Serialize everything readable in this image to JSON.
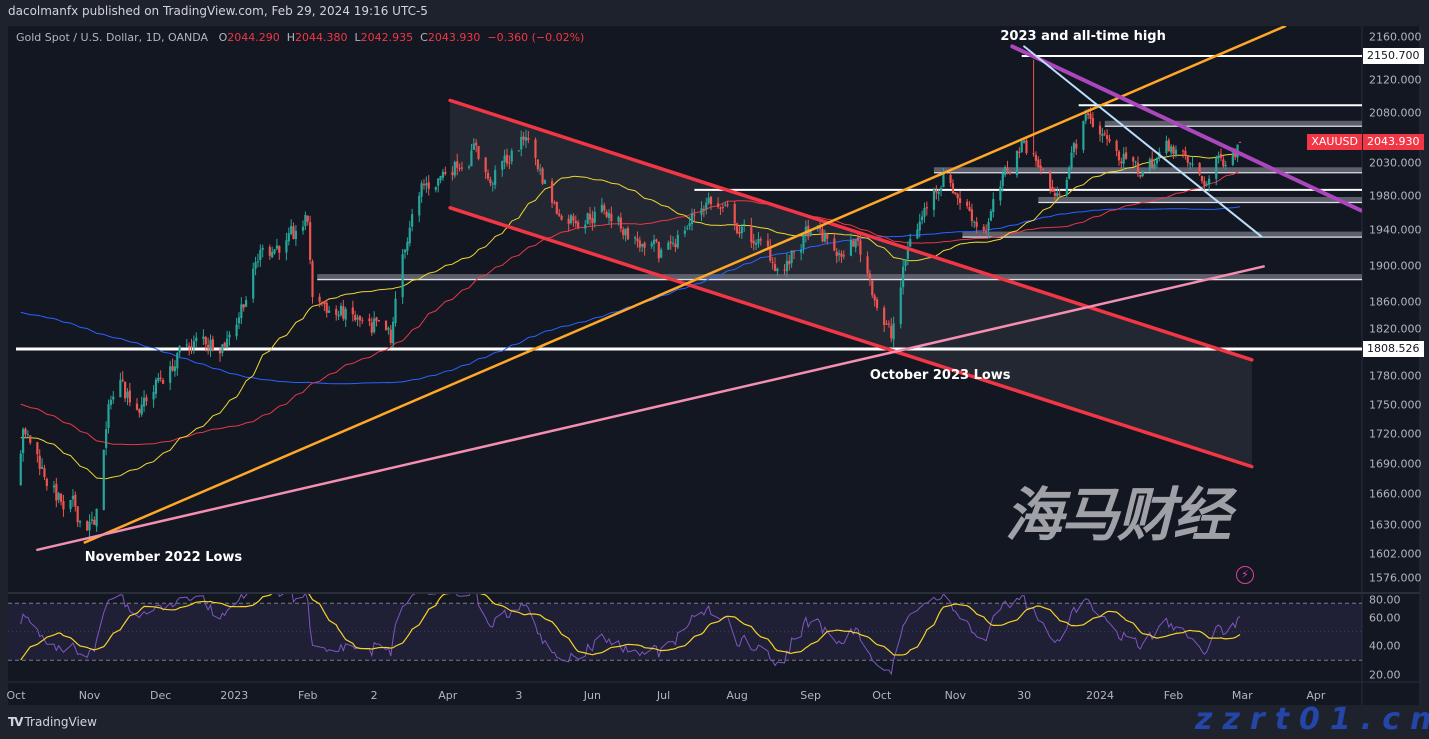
{
  "header": {
    "publisher": "dacolmanfx published on TradingView.com, Feb 29, 2024 19:16 UTC-5"
  },
  "legend": {
    "symbol": "Gold Spot / U.S. Dollar, 1D, OANDA",
    "o_label": "O",
    "o": "2044.290",
    "h_label": "H",
    "h": "2044.380",
    "l_label": "L",
    "l": "2042.935",
    "c_label": "C",
    "c": "2043.930",
    "change": "−0.360 (−0.02%)"
  },
  "footer": {
    "brand": "TradingView",
    "brand_icon": "tradingview-logo-icon"
  },
  "watermark": {
    "cn": "海马财经",
    "url": "zzrt01.cn"
  },
  "colors": {
    "background": "#131722",
    "up": "#26a69a",
    "down": "#ef5350",
    "sma_fast": "#f0d632",
    "sma_mid": "#e53945",
    "sma_slow": "#2962ff",
    "channel": "#f23645",
    "orange_trend": "#ffa726",
    "pink_trend": "#f48fb1",
    "purple_trend": "#ab47bc",
    "lightblue_trend": "#bbdefb",
    "rsi": "#7e57c2",
    "rsi_signal": "#f5d327",
    "price_label": "#f23645"
  },
  "chart_data": {
    "type": "candlestick",
    "symbol": "XAUUSD",
    "timeframe": "1D",
    "y_scale": "log",
    "current_price_label": {
      "name": "XAUUSD",
      "value": "2043.930"
    },
    "last_bar": {
      "open": 2044.29,
      "high": 2044.38,
      "low": 2042.935,
      "close": 2043.93
    },
    "close_waypoints": [
      {
        "date": "2022-10-03",
        "close": 1700
      },
      {
        "date": "2022-10-04",
        "close": 1725
      },
      {
        "date": "2022-10-21",
        "close": 1645
      },
      {
        "date": "2022-11-03",
        "close": 1630
      },
      {
        "date": "2022-11-10",
        "close": 1755
      },
      {
        "date": "2022-11-15",
        "close": 1775
      },
      {
        "date": "2022-11-23",
        "close": 1750
      },
      {
        "date": "2022-12-05",
        "close": 1790
      },
      {
        "date": "2022-12-13",
        "close": 1810
      },
      {
        "date": "2022-12-30",
        "close": 1824
      },
      {
        "date": "2023-01-13",
        "close": 1920
      },
      {
        "date": "2023-01-26",
        "close": 1930
      },
      {
        "date": "2023-02-01",
        "close": 1950
      },
      {
        "date": "2023-02-03",
        "close": 1865
      },
      {
        "date": "2023-02-28",
        "close": 1826
      },
      {
        "date": "2023-03-08",
        "close": 1815
      },
      {
        "date": "2023-03-13",
        "close": 1913
      },
      {
        "date": "2023-03-20",
        "close": 1980
      },
      {
        "date": "2023-04-04",
        "close": 2020
      },
      {
        "date": "2023-04-13",
        "close": 2040
      },
      {
        "date": "2023-04-19",
        "close": 1995
      },
      {
        "date": "2023-05-04",
        "close": 2050
      },
      {
        "date": "2023-05-18",
        "close": 1957
      },
      {
        "date": "2023-05-30",
        "close": 1960
      },
      {
        "date": "2023-06-06",
        "close": 1963
      },
      {
        "date": "2023-06-23",
        "close": 1920
      },
      {
        "date": "2023-06-29",
        "close": 1908
      },
      {
        "date": "2023-07-20",
        "close": 1978
      },
      {
        "date": "2023-08-08",
        "close": 1925
      },
      {
        "date": "2023-08-21",
        "close": 1895
      },
      {
        "date": "2023-09-01",
        "close": 1940
      },
      {
        "date": "2023-09-14",
        "close": 1910
      },
      {
        "date": "2023-09-20",
        "close": 1930
      },
      {
        "date": "2023-10-05",
        "close": 1820
      },
      {
        "date": "2023-10-13",
        "close": 1930
      },
      {
        "date": "2023-10-27",
        "close": 2006
      },
      {
        "date": "2023-11-13",
        "close": 1940
      },
      {
        "date": "2023-11-29",
        "close": 2045
      },
      {
        "date": "2023-12-04",
        "close": 2030,
        "high": 2146
      },
      {
        "date": "2023-12-13",
        "close": 1980
      },
      {
        "date": "2023-12-27",
        "close": 2077
      },
      {
        "date": "2024-01-05",
        "close": 2045
      },
      {
        "date": "2024-01-17",
        "close": 2006
      },
      {
        "date": "2024-01-31",
        "close": 2039
      },
      {
        "date": "2024-02-14",
        "close": 1992
      },
      {
        "date": "2024-02-21",
        "close": 2025
      },
      {
        "date": "2024-02-29",
        "close": 2044
      }
    ],
    "moving_averages": [
      {
        "period": 50,
        "color": "#f0d632"
      },
      {
        "period": 100,
        "color": "#e53945"
      },
      {
        "period": 200,
        "color": "#2962ff"
      }
    ],
    "horizontal_levels": [
      {
        "price": 2150.7,
        "from": "2023-11-29",
        "style": "white",
        "label": "2150.700"
      },
      {
        "price": 2089,
        "from": "2023-12-23",
        "style": "white"
      },
      {
        "price": 2065,
        "from": "2024-01-03",
        "style": "gray"
      },
      {
        "price": 2009,
        "from": "2023-10-23",
        "style": "gray"
      },
      {
        "price": 1987,
        "from": "2023-07-14",
        "style": "white"
      },
      {
        "price": 1974,
        "from": "2023-12-06",
        "style": "gray"
      },
      {
        "price": 1934,
        "from": "2023-11-04",
        "style": "gray"
      },
      {
        "price": 1886,
        "from": "2023-02-05",
        "style": "gray"
      },
      {
        "price": 1808.526,
        "from": "2022-10-01",
        "style": "white",
        "label": "1808.526"
      }
    ],
    "trendlines": [
      {
        "name": "channel-upper",
        "from": {
          "date": "2023-04-02",
          "price": 2095
        },
        "to": {
          "date": "2024-03-05",
          "price": 1797
        },
        "color": "#f23645",
        "width": 3.5
      },
      {
        "name": "channel-lower",
        "from": {
          "date": "2023-04-02",
          "price": 1966
        },
        "to": {
          "date": "2024-03-05",
          "price": 1687
        },
        "color": "#f23645",
        "width": 3.5
      },
      {
        "name": "orange-support",
        "from": {
          "date": "2022-10-30",
          "price": 1613
        },
        "to": {
          "date": "2024-03-19",
          "price": 2189
        },
        "color": "#ffa726",
        "width": 2.5
      },
      {
        "name": "pink-support",
        "from": {
          "date": "2022-10-10",
          "price": 1606
        },
        "to": {
          "date": "2024-03-10",
          "price": 1899
        },
        "color": "#f48fb1",
        "width": 2.5
      },
      {
        "name": "purple-resistance",
        "from": {
          "date": "2023-11-25",
          "price": 2163
        },
        "to": {
          "date": "2024-04-20",
          "price": 1963
        },
        "color": "#ab47bc",
        "width": 4
      },
      {
        "name": "lightblue-trend",
        "from": {
          "date": "2023-11-30",
          "price": 2163
        },
        "to": {
          "date": "2024-03-09",
          "price": 1933
        },
        "color": "#bbdefb",
        "width": 2
      }
    ],
    "annotations": [
      {
        "text": "2023 and all-time high",
        "date": "2023-11-20",
        "price": 2175
      },
      {
        "text": "November 2022 Lows",
        "date": "2022-10-30",
        "price": 1598
      },
      {
        "text": "October 2023 Lows",
        "date": "2023-09-26",
        "price": 1780
      }
    ],
    "y_ticks": [
      2160,
      2120,
      2080,
      2030,
      1980,
      1940,
      1900,
      1860,
      1820,
      1780,
      1750,
      1720,
      1690,
      1660,
      1630,
      1602,
      1576
    ],
    "y_tick_labels": [
      "2160.000",
      "2120.000",
      "2080.000",
      "2030.000",
      "1980.000",
      "1940.000",
      "1900.000",
      "1860.000",
      "1820.000",
      "1780.000",
      "1750.000",
      "1720.000",
      "1690.000",
      "1660.000",
      "1630.000",
      "1602.000",
      "1576.000"
    ],
    "x_ticks": [
      {
        "label": "Oct",
        "date": "2022-10-01"
      },
      {
        "label": "Nov",
        "date": "2022-11-01"
      },
      {
        "label": "Dec",
        "date": "2022-12-01"
      },
      {
        "label": "2023",
        "date": "2023-01-01"
      },
      {
        "label": "Feb",
        "date": "2023-02-01"
      },
      {
        "label": "2",
        "date": "2023-03-01"
      },
      {
        "label": "Apr",
        "date": "2023-04-01"
      },
      {
        "label": "3",
        "date": "2023-05-01"
      },
      {
        "label": "Jun",
        "date": "2023-06-01"
      },
      {
        "label": "Jul",
        "date": "2023-07-01"
      },
      {
        "label": "Aug",
        "date": "2023-08-01"
      },
      {
        "label": "Sep",
        "date": "2023-09-01"
      },
      {
        "label": "Oct",
        "date": "2023-10-01"
      },
      {
        "label": "Nov",
        "date": "2023-11-01"
      },
      {
        "label": "30",
        "date": "2023-11-30"
      },
      {
        "label": "2024",
        "date": "2024-01-01"
      },
      {
        "label": "Feb",
        "date": "2024-02-01"
      },
      {
        "label": "Mar",
        "date": "2024-03-01"
      },
      {
        "label": "Apr",
        "date": "2024-04-01"
      }
    ],
    "rsi": {
      "period": 14,
      "signal_period": 14,
      "upper_band": 70,
      "lower_band": 30,
      "y_ticks": [
        80,
        60,
        40,
        20
      ],
      "y_tick_labels": [
        "80.00",
        "60.00",
        "40.00",
        "20.00"
      ]
    }
  }
}
